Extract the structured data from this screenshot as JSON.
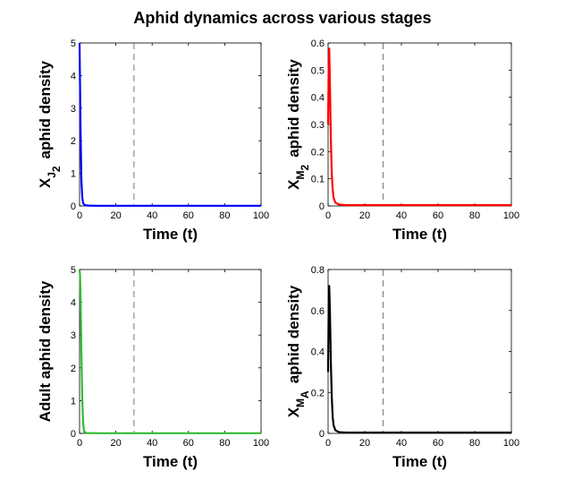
{
  "figure": {
    "title": "Aphid dynamics across various stages"
  },
  "chart_data": [
    {
      "type": "line",
      "id": "juvenile",
      "xlabel": "Time (t)",
      "ylabel": {
        "main": "X",
        "sub1": "J",
        "sub2": "2",
        "rest": "aphid density"
      },
      "xlim": [
        0,
        100
      ],
      "ylim": [
        0,
        5
      ],
      "xticks": [
        0,
        20,
        40,
        60,
        80,
        100
      ],
      "yticks": [
        0,
        1,
        2,
        3,
        4,
        5
      ],
      "grid": false,
      "vline_x": 30,
      "series": [
        {
          "color": "#0000ff",
          "x": [
            0,
            0.5,
            1,
            1.5,
            2,
            3,
            5,
            10,
            30,
            100
          ],
          "y": [
            5,
            2.5,
            0.8,
            0.25,
            0.08,
            0.02,
            0.01,
            0.005,
            0.005,
            0.005
          ]
        }
      ]
    },
    {
      "type": "line",
      "id": "migrant",
      "xlabel": "Time (t)",
      "ylabel": {
        "main": "X",
        "sub1": "M",
        "sub2": "2",
        "rest": "aphid density"
      },
      "xlim": [
        0,
        100
      ],
      "ylim": [
        0,
        0.6
      ],
      "xticks": [
        0,
        20,
        40,
        60,
        80,
        100
      ],
      "yticks": [
        0,
        0.1,
        0.2,
        0.3,
        0.4,
        0.5,
        0.6
      ],
      "grid": false,
      "vline_x": 30,
      "series": [
        {
          "color": "#ff0000",
          "x": [
            0,
            0.3,
            0.6,
            1,
            1.5,
            2,
            2.5,
            3,
            4,
            6,
            10,
            30,
            100
          ],
          "y": [
            0.3,
            0.5,
            0.58,
            0.45,
            0.25,
            0.12,
            0.06,
            0.03,
            0.012,
            0.005,
            0.003,
            0.003,
            0.003
          ]
        }
      ]
    },
    {
      "type": "line",
      "id": "adult",
      "xlabel": "Time (t)",
      "ylabel": {
        "main": "Adult aphid density"
      },
      "xlim": [
        0,
        100
      ],
      "ylim": [
        0,
        5
      ],
      "xticks": [
        0,
        20,
        40,
        60,
        80,
        100
      ],
      "yticks": [
        0,
        1,
        2,
        3,
        4,
        5
      ],
      "grid": false,
      "vline_x": 30,
      "series": [
        {
          "color": "#33bb33",
          "x": [
            0,
            0.3,
            0.6,
            1,
            1.5,
            2,
            2.5,
            4,
            10,
            30,
            100
          ],
          "y": [
            5,
            4.8,
            4.0,
            2.5,
            1.0,
            0.3,
            0.05,
            0.01,
            0.005,
            0.005,
            0.005
          ]
        }
      ]
    },
    {
      "type": "line",
      "id": "migrant-adult",
      "xlabel": "Time (t)",
      "ylabel": {
        "main": "X",
        "sub1": "M",
        "sub2": "A",
        "rest": "aphid density"
      },
      "xlim": [
        0,
        100
      ],
      "ylim": [
        0,
        0.8
      ],
      "xticks": [
        0,
        20,
        40,
        60,
        80,
        100
      ],
      "yticks": [
        0,
        0.2,
        0.4,
        0.6,
        0.8
      ],
      "grid": false,
      "vline_x": 30,
      "series": [
        {
          "color": "#000000",
          "x": [
            0,
            0.3,
            0.6,
            1,
            1.5,
            2,
            2.5,
            3,
            4,
            6,
            10,
            30,
            100
          ],
          "y": [
            0.3,
            0.6,
            0.72,
            0.6,
            0.35,
            0.18,
            0.08,
            0.04,
            0.015,
            0.006,
            0.004,
            0.004,
            0.004
          ]
        }
      ]
    }
  ]
}
